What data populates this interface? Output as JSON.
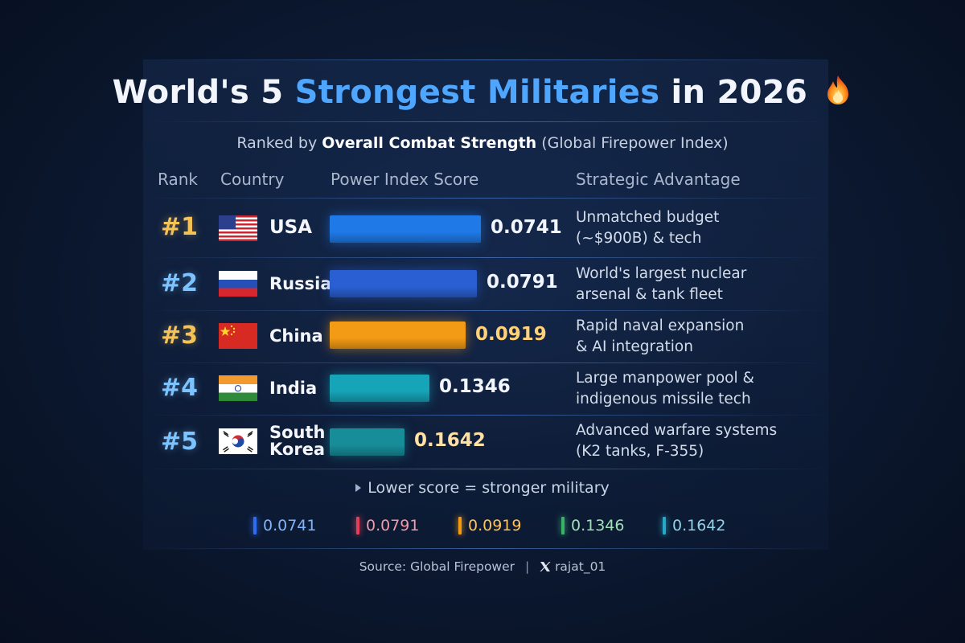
{
  "title": {
    "pre": "World's 5 ",
    "highlight": "Strongest Militaries",
    "post": " in 2026"
  },
  "subtitle": {
    "pre": "Ranked by ",
    "bold": "Overall Combat Strength",
    "post": " (Global Firepower Index)"
  },
  "headers": {
    "rank": "Rank",
    "country": "Country",
    "score": "Power Index Score",
    "advantage": "Strategic Advantage"
  },
  "rows": [
    {
      "rank": "#1",
      "country": "USA",
      "country_line2": "",
      "score": "0.0741",
      "adv1": "Unmatched budget",
      "adv2": "(~$900B) & tech",
      "rank_color": "#f5c257",
      "bar_color": "#1f7ae8",
      "score_color": "#f2f5fb"
    },
    {
      "rank": "#2",
      "country": "Russia",
      "country_line2": "",
      "score": "0.0791",
      "adv1": "World's largest nuclear",
      "adv2": "arsenal & tank fleet",
      "rank_color": "#7cc3ff",
      "bar_color": "#2a5fd4",
      "score_color": "#f2f5fb"
    },
    {
      "rank": "#3",
      "country": "China",
      "country_line2": "",
      "score": "0.0919",
      "adv1": "Rapid naval expansion",
      "adv2": "& AI integration",
      "rank_color": "#f5c257",
      "bar_color": "#f39b14",
      "score_color": "#ffd27a"
    },
    {
      "rank": "#4",
      "country": "India",
      "country_line2": "",
      "score": "0.1346",
      "adv1": "Large manpower pool &",
      "adv2": "indigenous missile tech",
      "rank_color": "#7cc3ff",
      "bar_color": "#16a4b8",
      "score_color": "#f2f5fb"
    },
    {
      "rank": "#5",
      "country": "South",
      "country_line2": "Korea",
      "score": "0.1642",
      "adv1": "Advanced warfare systems",
      "adv2": "(K2 tanks, F-355)",
      "rank_color": "#7cc3ff",
      "bar_color": "#178d9a",
      "score_color": "#ffe1a3"
    }
  ],
  "note": "Lower score = stronger military",
  "legend": [
    {
      "value": "0.0741",
      "color": "#2f6df0",
      "text_color": "#7fb4ff"
    },
    {
      "value": "0.0791",
      "color": "#e0405a",
      "text_color": "#f19aa8"
    },
    {
      "value": "0.0919",
      "color": "#f39b14",
      "text_color": "#ffc25a"
    },
    {
      "value": "0.1346",
      "color": "#39b36a",
      "text_color": "#9fe0b7"
    },
    {
      "value": "0.1642",
      "color": "#28a8c8",
      "text_color": "#8fd3ea"
    }
  ],
  "source": {
    "text": "Source: Global Firepower",
    "handle": "rajat_01"
  },
  "chart_data": {
    "type": "bar",
    "title": "World's 5 Strongest Militaries in 2026",
    "subtitle": "Ranked by Overall Combat Strength (Global Firepower Index)",
    "categories": [
      "USA",
      "Russia",
      "China",
      "India",
      "South Korea"
    ],
    "values": [
      0.0741,
      0.0791,
      0.0919,
      0.1346,
      0.1642
    ],
    "xlabel": "Power Index Score",
    "ylabel": "Country",
    "note": "Lower score = stronger military"
  }
}
